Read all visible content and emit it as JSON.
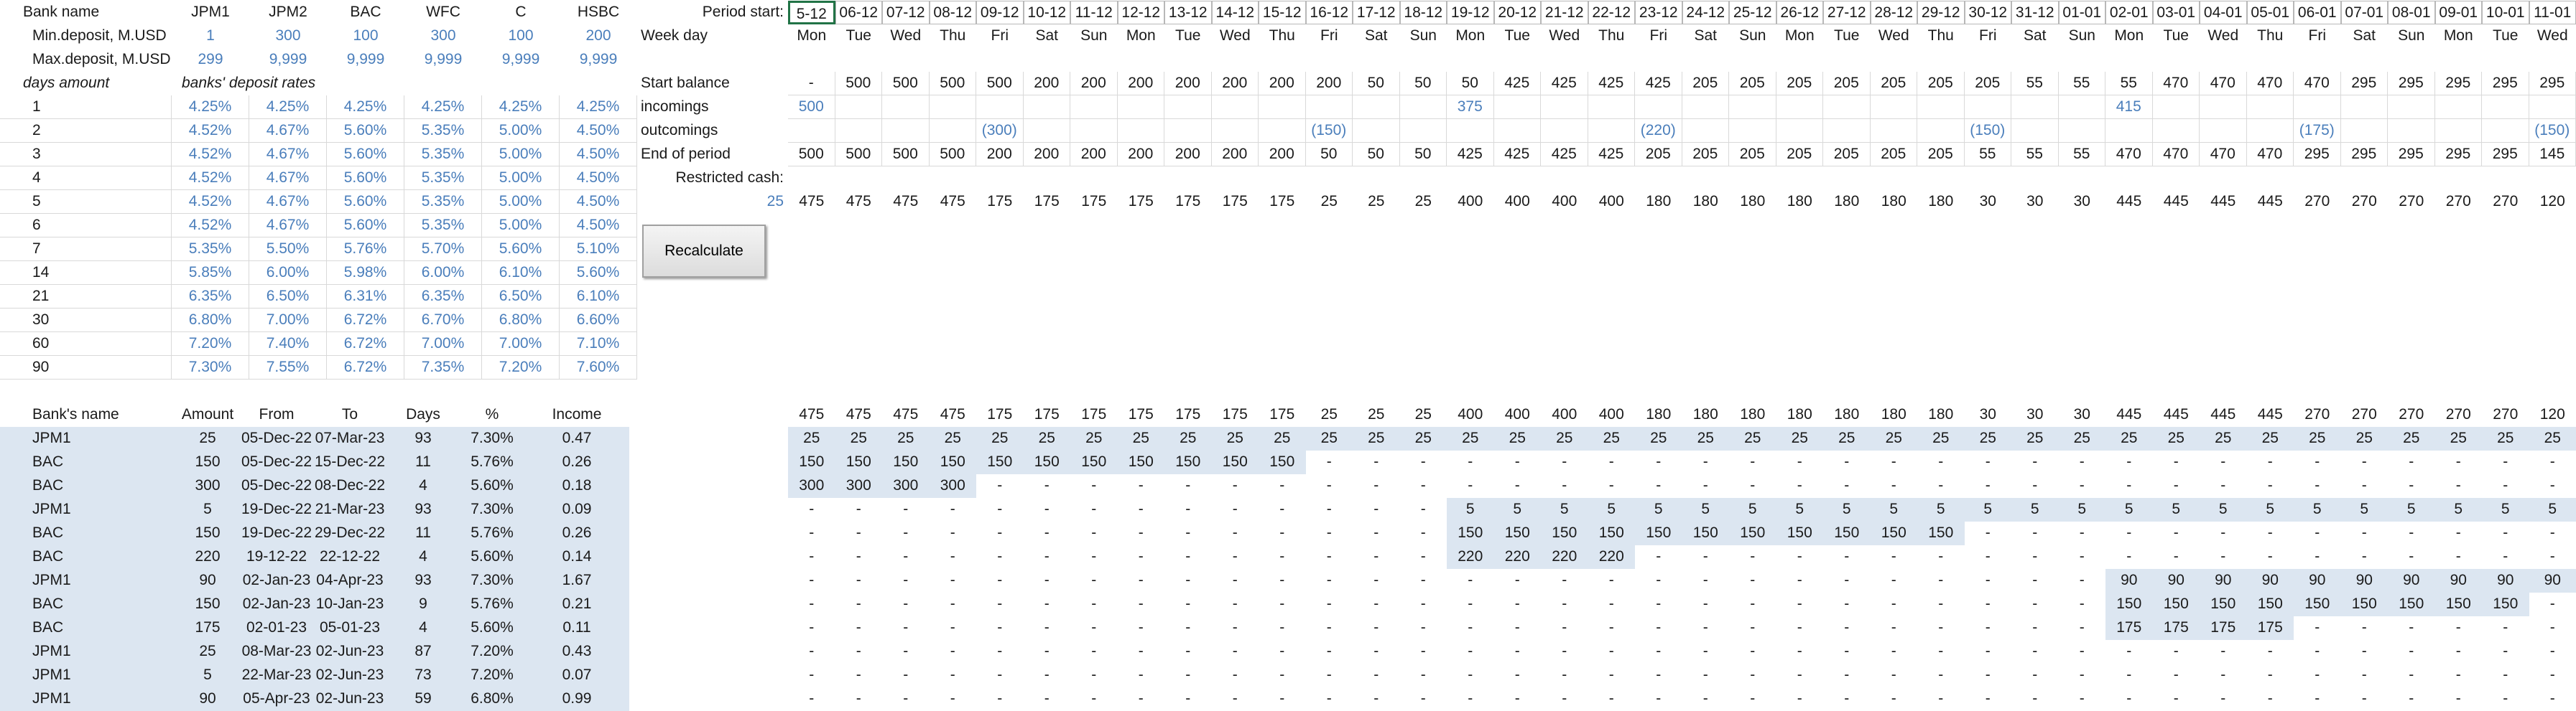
{
  "rates_table": {
    "header": [
      "Bank name",
      "JPM1",
      "JPM2",
      "BAC",
      "WFC",
      "C",
      "HSBC"
    ],
    "min_deposit": {
      "label": "Min.deposit, M.USD",
      "values": [
        "1",
        "300",
        "100",
        "300",
        "100",
        "200"
      ]
    },
    "max_deposit": {
      "label": "Max.deposit, M.USD",
      "values": [
        "299",
        "9,999",
        "9,999",
        "9,999",
        "9,999",
        "9,999"
      ]
    },
    "subheader": [
      "days amount",
      "banks' deposit rates"
    ],
    "rows": [
      {
        "days": "1",
        "rates": [
          "4.25%",
          "4.25%",
          "4.25%",
          "4.25%",
          "4.25%",
          "4.25%"
        ]
      },
      {
        "days": "2",
        "rates": [
          "4.52%",
          "4.67%",
          "5.60%",
          "5.35%",
          "5.00%",
          "4.50%"
        ]
      },
      {
        "days": "3",
        "rates": [
          "4.52%",
          "4.67%",
          "5.60%",
          "5.35%",
          "5.00%",
          "4.50%"
        ]
      },
      {
        "days": "4",
        "rates": [
          "4.52%",
          "4.67%",
          "5.60%",
          "5.35%",
          "5.00%",
          "4.50%"
        ]
      },
      {
        "days": "5",
        "rates": [
          "4.52%",
          "4.67%",
          "5.60%",
          "5.35%",
          "5.00%",
          "4.50%"
        ]
      },
      {
        "days": "6",
        "rates": [
          "4.52%",
          "4.67%",
          "5.60%",
          "5.35%",
          "5.00%",
          "4.50%"
        ]
      },
      {
        "days": "7",
        "rates": [
          "5.35%",
          "5.50%",
          "5.76%",
          "5.70%",
          "5.60%",
          "5.10%"
        ]
      },
      {
        "days": "14",
        "rates": [
          "5.85%",
          "6.00%",
          "5.98%",
          "6.00%",
          "6.10%",
          "5.60%"
        ]
      },
      {
        "days": "21",
        "rates": [
          "6.35%",
          "6.50%",
          "6.31%",
          "6.35%",
          "6.50%",
          "6.10%"
        ]
      },
      {
        "days": "30",
        "rates": [
          "6.80%",
          "7.00%",
          "6.72%",
          "6.70%",
          "6.80%",
          "6.60%"
        ]
      },
      {
        "days": "60",
        "rates": [
          "7.20%",
          "7.40%",
          "6.72%",
          "7.00%",
          "7.00%",
          "7.10%"
        ]
      },
      {
        "days": "90",
        "rates": [
          "7.30%",
          "7.55%",
          "6.72%",
          "7.35%",
          "7.20%",
          "7.60%"
        ]
      }
    ]
  },
  "schedule": {
    "labels": {
      "period_start": "Period start:",
      "week_day": "Week day",
      "start_balance": "Start balance",
      "incomings": "incomings",
      "outcomings": "outcomings",
      "end_of_period": "End of period",
      "restricted_cash": "Restricted cash:"
    },
    "restricted_cash_value": "25",
    "dates": [
      "5-12",
      "06-12",
      "07-12",
      "08-12",
      "09-12",
      "10-12",
      "11-12",
      "12-12",
      "13-12",
      "14-12",
      "15-12",
      "16-12",
      "17-12",
      "18-12",
      "19-12",
      "20-12",
      "21-12",
      "22-12",
      "23-12",
      "24-12",
      "25-12",
      "26-12",
      "27-12",
      "28-12",
      "29-12",
      "30-12",
      "31-12",
      "01-01",
      "02-01",
      "03-01",
      "04-01",
      "05-01",
      "06-01",
      "07-01",
      "08-01",
      "09-01",
      "10-01",
      "11-01"
    ],
    "week_days": [
      "Mon",
      "Tue",
      "Wed",
      "Thu",
      "Fri",
      "Sat",
      "Sun",
      "Mon",
      "Tue",
      "Wed",
      "Thu",
      "Fri",
      "Sat",
      "Sun",
      "Mon",
      "Tue",
      "Wed",
      "Thu",
      "Fri",
      "Sat",
      "Sun",
      "Mon",
      "Tue",
      "Wed",
      "Thu",
      "Fri",
      "Sat",
      "Sun",
      "Mon",
      "Tue",
      "Wed",
      "Thu",
      "Fri",
      "Sat",
      "Sun",
      "Mon",
      "Tue",
      "Wed"
    ],
    "start_balance": [
      "-",
      "500",
      "500",
      "500",
      "500",
      "200",
      "200",
      "200",
      "200",
      "200",
      "200",
      "200",
      "50",
      "50",
      "50",
      "425",
      "425",
      "425",
      "425",
      "205",
      "205",
      "205",
      "205",
      "205",
      "205",
      "205",
      "55",
      "55",
      "55",
      "470",
      "470",
      "470",
      "470",
      "295",
      "295",
      "295",
      "295",
      "295"
    ],
    "incomings": [
      "500",
      null,
      null,
      null,
      null,
      null,
      null,
      null,
      null,
      null,
      null,
      null,
      null,
      null,
      "375",
      null,
      null,
      null,
      null,
      null,
      null,
      null,
      null,
      null,
      null,
      null,
      null,
      null,
      "415",
      null,
      null,
      null,
      null,
      null,
      null,
      null,
      null,
      null
    ],
    "outcomings": [
      null,
      null,
      null,
      null,
      "(300)",
      null,
      null,
      null,
      null,
      null,
      null,
      "(150)",
      null,
      null,
      null,
      null,
      null,
      null,
      "(220)",
      null,
      null,
      null,
      null,
      null,
      null,
      "(150)",
      null,
      null,
      null,
      null,
      null,
      null,
      "(175)",
      null,
      null,
      null,
      null,
      "(150)"
    ],
    "end_of_period": [
      "500",
      "500",
      "500",
      "500",
      "200",
      "200",
      "200",
      "200",
      "200",
      "200",
      "200",
      "50",
      "50",
      "50",
      "425",
      "425",
      "425",
      "425",
      "205",
      "205",
      "205",
      "205",
      "205",
      "205",
      "205",
      "55",
      "55",
      "55",
      "470",
      "470",
      "470",
      "470",
      "295",
      "295",
      "295",
      "295",
      "295",
      "145"
    ],
    "available": [
      "475",
      "475",
      "475",
      "475",
      "175",
      "175",
      "175",
      "175",
      "175",
      "175",
      "175",
      "25",
      "25",
      "25",
      "400",
      "400",
      "400",
      "400",
      "180",
      "180",
      "180",
      "180",
      "180",
      "180",
      "180",
      "30",
      "30",
      "30",
      "445",
      "445",
      "445",
      "445",
      "270",
      "270",
      "270",
      "270",
      "270",
      "120"
    ]
  },
  "button": "Recalculate",
  "deposits_table": {
    "header": [
      "Bank's name",
      "Amount",
      "From",
      "To",
      "Days",
      "%",
      "Income"
    ],
    "rows": [
      [
        "JPM1",
        "25",
        "05-Dec-22",
        "07-Mar-23",
        "93",
        "7.30%",
        "0.47"
      ],
      [
        "BAC",
        "150",
        "05-Dec-22",
        "15-Dec-22",
        "11",
        "5.76%",
        "0.26"
      ],
      [
        "BAC",
        "300",
        "05-Dec-22",
        "08-Dec-22",
        "4",
        "5.60%",
        "0.18"
      ],
      [
        "JPM1",
        "5",
        "19-Dec-22",
        "21-Mar-23",
        "93",
        "7.30%",
        "0.09"
      ],
      [
        "BAC",
        "150",
        "19-Dec-22",
        "29-Dec-22",
        "11",
        "5.76%",
        "0.26"
      ],
      [
        "BAC",
        "220",
        "19-12-22",
        "22-12-22",
        "4",
        "5.60%",
        "0.14"
      ],
      [
        "JPM1",
        "90",
        "02-Jan-23",
        "04-Apr-23",
        "93",
        "7.30%",
        "1.67"
      ],
      [
        "BAC",
        "150",
        "02-Jan-23",
        "10-Jan-23",
        "9",
        "5.76%",
        "0.21"
      ],
      [
        "BAC",
        "175",
        "02-01-23",
        "05-01-23",
        "4",
        "5.60%",
        "0.11"
      ],
      [
        "JPM1",
        "25",
        "08-Mar-23",
        "02-Jun-23",
        "87",
        "7.20%",
        "0.43"
      ],
      [
        "JPM1",
        "5",
        "22-Mar-23",
        "02-Jun-23",
        "73",
        "7.20%",
        "0.07"
      ],
      [
        "JPM1",
        "90",
        "05-Apr-23",
        "02-Jun-23",
        "59",
        "6.80%",
        "0.99"
      ]
    ]
  },
  "deposit_grid": {
    "totals": [
      "475",
      "475",
      "475",
      "475",
      "175",
      "175",
      "175",
      "175",
      "175",
      "175",
      "175",
      "25",
      "25",
      "25",
      "400",
      "400",
      "400",
      "400",
      "180",
      "180",
      "180",
      "180",
      "180",
      "180",
      "180",
      "30",
      "30",
      "30",
      "445",
      "445",
      "445",
      "445",
      "270",
      "270",
      "270",
      "270",
      "270",
      "120"
    ],
    "rows": [
      [
        "25",
        "25",
        "25",
        "25",
        "25",
        "25",
        "25",
        "25",
        "25",
        "25",
        "25",
        "25",
        "25",
        "25",
        "25",
        "25",
        "25",
        "25",
        "25",
        "25",
        "25",
        "25",
        "25",
        "25",
        "25",
        "25",
        "25",
        "25",
        "25",
        "25",
        "25",
        "25",
        "25",
        "25",
        "25",
        "25",
        "25",
        "25"
      ],
      [
        "150",
        "150",
        "150",
        "150",
        "150",
        "150",
        "150",
        "150",
        "150",
        "150",
        "150",
        "-",
        "-",
        "-",
        "-",
        "-",
        "-",
        "-",
        "-",
        "-",
        "-",
        "-",
        "-",
        "-",
        "-",
        "-",
        "-",
        "-",
        "-",
        "-",
        "-",
        "-",
        "-",
        "-",
        "-",
        "-",
        "-",
        "-"
      ],
      [
        "300",
        "300",
        "300",
        "300",
        "-",
        "-",
        "-",
        "-",
        "-",
        "-",
        "-",
        "-",
        "-",
        "-",
        "-",
        "-",
        "-",
        "-",
        "-",
        "-",
        "-",
        "-",
        "-",
        "-",
        "-",
        "-",
        "-",
        "-",
        "-",
        "-",
        "-",
        "-",
        "-",
        "-",
        "-",
        "-",
        "-",
        "-"
      ],
      [
        "-",
        "-",
        "-",
        "-",
        "-",
        "-",
        "-",
        "-",
        "-",
        "-",
        "-",
        "-",
        "-",
        "-",
        "5",
        "5",
        "5",
        "5",
        "5",
        "5",
        "5",
        "5",
        "5",
        "5",
        "5",
        "5",
        "5",
        "5",
        "5",
        "5",
        "5",
        "5",
        "5",
        "5",
        "5",
        "5",
        "5",
        "5"
      ],
      [
        "-",
        "-",
        "-",
        "-",
        "-",
        "-",
        "-",
        "-",
        "-",
        "-",
        "-",
        "-",
        "-",
        "-",
        "150",
        "150",
        "150",
        "150",
        "150",
        "150",
        "150",
        "150",
        "150",
        "150",
        "150",
        "-",
        "-",
        "-",
        "-",
        "-",
        "-",
        "-",
        "-",
        "-",
        "-",
        "-",
        "-",
        "-"
      ],
      [
        "-",
        "-",
        "-",
        "-",
        "-",
        "-",
        "-",
        "-",
        "-",
        "-",
        "-",
        "-",
        "-",
        "-",
        "220",
        "220",
        "220",
        "220",
        "-",
        "-",
        "-",
        "-",
        "-",
        "-",
        "-",
        "-",
        "-",
        "-",
        "-",
        "-",
        "-",
        "-",
        "-",
        "-",
        "-",
        "-",
        "-",
        "-"
      ],
      [
        "-",
        "-",
        "-",
        "-",
        "-",
        "-",
        "-",
        "-",
        "-",
        "-",
        "-",
        "-",
        "-",
        "-",
        "-",
        "-",
        "-",
        "-",
        "-",
        "-",
        "-",
        "-",
        "-",
        "-",
        "-",
        "-",
        "-",
        "-",
        "90",
        "90",
        "90",
        "90",
        "90",
        "90",
        "90",
        "90",
        "90",
        "90"
      ],
      [
        "-",
        "-",
        "-",
        "-",
        "-",
        "-",
        "-",
        "-",
        "-",
        "-",
        "-",
        "-",
        "-",
        "-",
        "-",
        "-",
        "-",
        "-",
        "-",
        "-",
        "-",
        "-",
        "-",
        "-",
        "-",
        "-",
        "-",
        "-",
        "150",
        "150",
        "150",
        "150",
        "150",
        "150",
        "150",
        "150",
        "150",
        "-"
      ],
      [
        "-",
        "-",
        "-",
        "-",
        "-",
        "-",
        "-",
        "-",
        "-",
        "-",
        "-",
        "-",
        "-",
        "-",
        "-",
        "-",
        "-",
        "-",
        "-",
        "-",
        "-",
        "-",
        "-",
        "-",
        "-",
        "-",
        "-",
        "-",
        "175",
        "175",
        "175",
        "175",
        "-",
        "-",
        "-",
        "-",
        "-",
        "-"
      ],
      [
        "-",
        "-",
        "-",
        "-",
        "-",
        "-",
        "-",
        "-",
        "-",
        "-",
        "-",
        "-",
        "-",
        "-",
        "-",
        "-",
        "-",
        "-",
        "-",
        "-",
        "-",
        "-",
        "-",
        "-",
        "-",
        "-",
        "-",
        "-",
        "-",
        "-",
        "-",
        "-",
        "-",
        "-",
        "-",
        "-",
        "-",
        "-"
      ],
      [
        "-",
        "-",
        "-",
        "-",
        "-",
        "-",
        "-",
        "-",
        "-",
        "-",
        "-",
        "-",
        "-",
        "-",
        "-",
        "-",
        "-",
        "-",
        "-",
        "-",
        "-",
        "-",
        "-",
        "-",
        "-",
        "-",
        "-",
        "-",
        "-",
        "-",
        "-",
        "-",
        "-",
        "-",
        "-",
        "-",
        "-",
        "-"
      ],
      [
        "-",
        "-",
        "-",
        "-",
        "-",
        "-",
        "-",
        "-",
        "-",
        "-",
        "-",
        "-",
        "-",
        "-",
        "-",
        "-",
        "-",
        "-",
        "-",
        "-",
        "-",
        "-",
        "-",
        "-",
        "-",
        "-",
        "-",
        "-",
        "-",
        "-",
        "-",
        "-",
        "-",
        "-",
        "-",
        "-",
        "-",
        "-"
      ]
    ]
  }
}
